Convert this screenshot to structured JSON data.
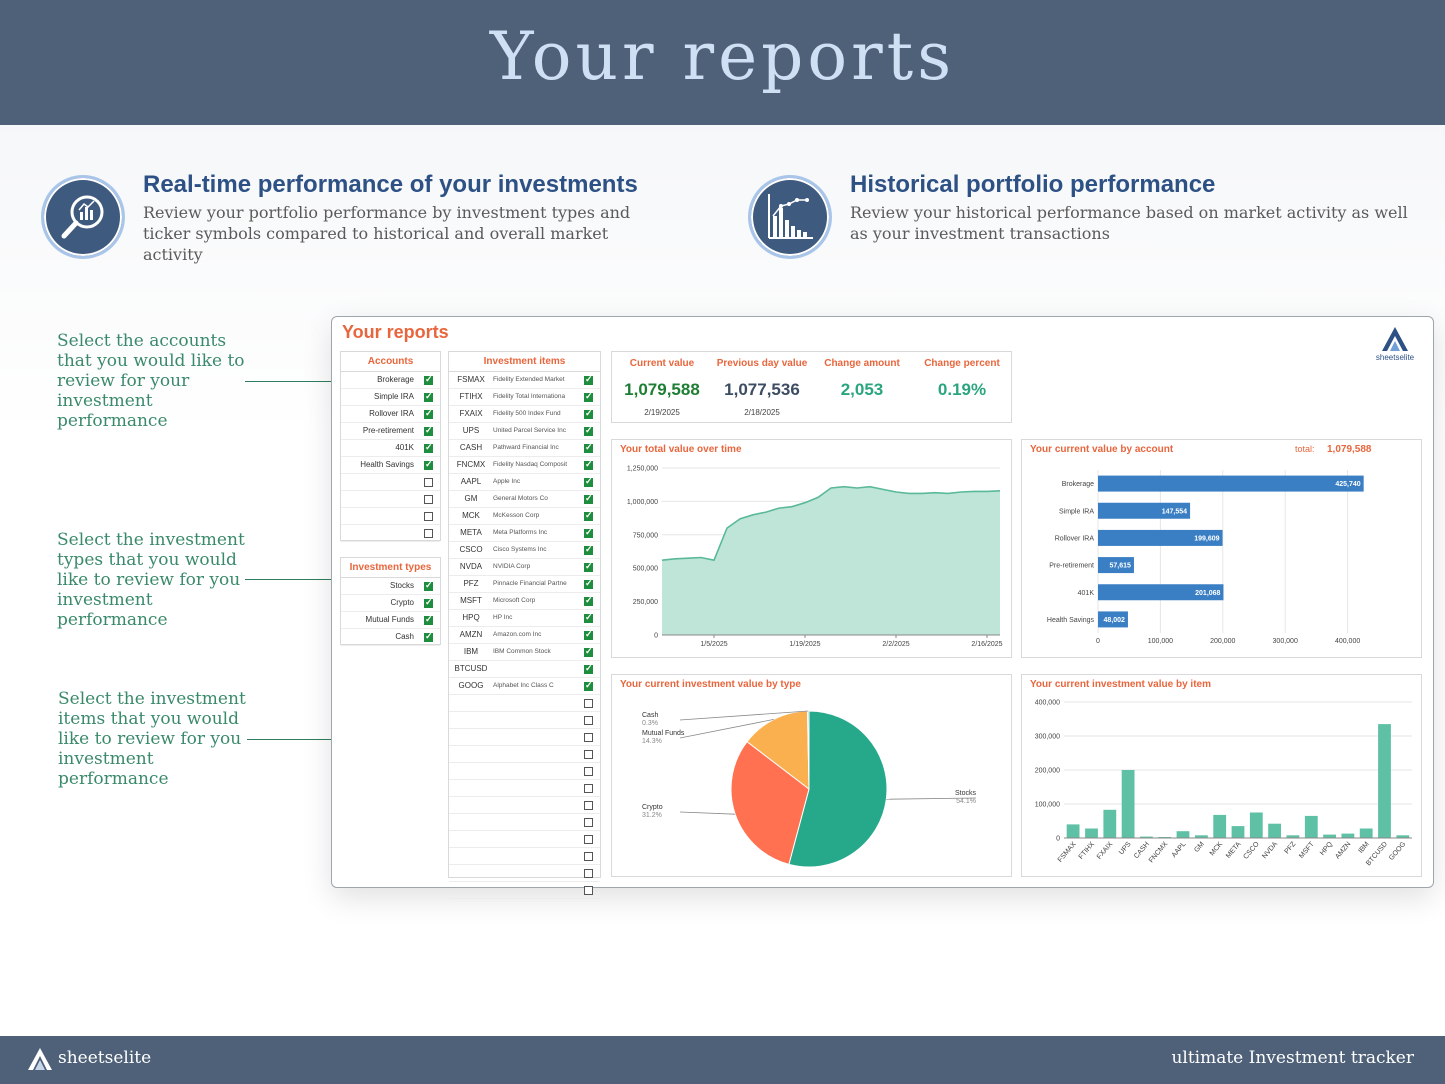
{
  "banner": {
    "title": "Your reports"
  },
  "features": [
    {
      "title": "Real-time performance of your investments",
      "description": "Review your portfolio performance by investment types and ticker symbols compared to historical and overall market activity",
      "icon": "magnifier-chart-icon"
    },
    {
      "title": "Historical portfolio performance",
      "description": "Review your historical performance based on market activity as well as your investment transactions",
      "icon": "bar-line-chart-icon"
    }
  ],
  "callouts": [
    "Select the accounts that you would like to review for your investment performance",
    "Select the investment types that you would like to review for you investment performance",
    "Select the investment items that you would like to review for you investment performance"
  ],
  "dashboard": {
    "title": "Your reports",
    "logo_text": "sheetselite",
    "accounts": {
      "header": "Accounts",
      "items": [
        {
          "label": "Brokerage",
          "checked": true
        },
        {
          "label": "Simple IRA",
          "checked": true
        },
        {
          "label": "Rollover IRA",
          "checked": true
        },
        {
          "label": "Pre-retirement",
          "checked": true
        },
        {
          "label": "401K",
          "checked": true
        },
        {
          "label": "Health Savings",
          "checked": true
        },
        {
          "label": "",
          "checked": false
        },
        {
          "label": "",
          "checked": false
        },
        {
          "label": "",
          "checked": false
        },
        {
          "label": "",
          "checked": false
        }
      ]
    },
    "types": {
      "header": "Investment types",
      "items": [
        {
          "label": "Stocks",
          "checked": true
        },
        {
          "label": "Crypto",
          "checked": true
        },
        {
          "label": "Mutual Funds",
          "checked": true
        },
        {
          "label": "Cash",
          "checked": true
        }
      ]
    },
    "items": {
      "header": "Investment items",
      "rows": [
        {
          "ticker": "FSMAX",
          "name": "Fidelity Extended Market",
          "checked": true
        },
        {
          "ticker": "FTIHX",
          "name": "Fidelity Total Internationa",
          "checked": true
        },
        {
          "ticker": "FXAIX",
          "name": "Fidelity 500 Index Fund",
          "checked": true
        },
        {
          "ticker": "UPS",
          "name": "United Parcel Service Inc",
          "checked": true
        },
        {
          "ticker": "CASH",
          "name": "Pathward Financial Inc",
          "checked": true
        },
        {
          "ticker": "FNCMX",
          "name": "Fidelity Nasdaq Composit",
          "checked": true
        },
        {
          "ticker": "AAPL",
          "name": "Apple Inc",
          "checked": true
        },
        {
          "ticker": "GM",
          "name": "General Motors Co",
          "checked": true
        },
        {
          "ticker": "MCK",
          "name": "McKesson Corp",
          "checked": true
        },
        {
          "ticker": "META",
          "name": "Meta Platforms Inc",
          "checked": true
        },
        {
          "ticker": "CSCO",
          "name": "Cisco Systems Inc",
          "checked": true
        },
        {
          "ticker": "NVDA",
          "name": "NVIDIA Corp",
          "checked": true
        },
        {
          "ticker": "PFZ",
          "name": "Pinnacle Financial Partne",
          "checked": true
        },
        {
          "ticker": "MSFT",
          "name": "Microsoft Corp",
          "checked": true
        },
        {
          "ticker": "HPQ",
          "name": "HP Inc",
          "checked": true
        },
        {
          "ticker": "AMZN",
          "name": "Amazon.com Inc",
          "checked": true
        },
        {
          "ticker": "IBM",
          "name": "IBM Common Stock",
          "checked": true
        },
        {
          "ticker": "BTCUSD",
          "name": "",
          "checked": true
        },
        {
          "ticker": "GOOG",
          "name": "Alphabet Inc Class C",
          "checked": true
        },
        {
          "ticker": "",
          "name": "",
          "checked": false
        },
        {
          "ticker": "",
          "name": "",
          "checked": false
        },
        {
          "ticker": "",
          "name": "",
          "checked": false
        },
        {
          "ticker": "",
          "name": "",
          "checked": false
        },
        {
          "ticker": "",
          "name": "",
          "checked": false
        },
        {
          "ticker": "",
          "name": "",
          "checked": false
        },
        {
          "ticker": "",
          "name": "",
          "checked": false
        },
        {
          "ticker": "",
          "name": "",
          "checked": false
        },
        {
          "ticker": "",
          "name": "",
          "checked": false
        },
        {
          "ticker": "",
          "name": "",
          "checked": false
        },
        {
          "ticker": "",
          "name": "",
          "checked": false
        },
        {
          "ticker": "",
          "name": "",
          "checked": false
        }
      ]
    },
    "kpis": [
      {
        "label": "Current value",
        "value": "1,079,588",
        "date": "2/19/2025",
        "color": "#1e7e34"
      },
      {
        "label": "Previous day value",
        "value": "1,077,536",
        "date": "2/18/2025",
        "color": "#3c4c63"
      },
      {
        "label": "Change amount",
        "value": "2,053",
        "date": "",
        "color": "#2aa57f"
      },
      {
        "label": "Change percent",
        "value": "0.19%",
        "date": "",
        "color": "#2aa57f"
      }
    ],
    "account_total": {
      "label": "total:",
      "value": "1,079,588"
    }
  },
  "chart_data": [
    {
      "type": "area",
      "title": "Your total value over time",
      "x": [
        "12/27/2024",
        "12/30/2024",
        "1/2/2025",
        "1/4/2025",
        "1/5/2025",
        "1/7/2025",
        "1/9/2025",
        "1/11/2025",
        "1/13/2025",
        "1/15/2025",
        "1/17/2025",
        "1/19/2025",
        "1/21/2025",
        "1/23/2025",
        "1/25/2025",
        "1/27/2025",
        "1/29/2025",
        "1/31/2025",
        "2/2/2025",
        "2/4/2025",
        "2/6/2025",
        "2/8/2025",
        "2/10/2025",
        "2/12/2025",
        "2/14/2025",
        "2/16/2025",
        "2/19/2025"
      ],
      "y": [
        560000,
        570000,
        575000,
        580000,
        560000,
        800000,
        870000,
        900000,
        920000,
        950000,
        960000,
        990000,
        1030000,
        1100000,
        1110000,
        1100000,
        1110000,
        1090000,
        1070000,
        1060000,
        1060000,
        1065000,
        1060000,
        1070000,
        1075000,
        1075000,
        1079588
      ],
      "xticks": [
        "1/5/2025",
        "1/19/2025",
        "2/2/2025",
        "2/16/2025"
      ],
      "yticks": [
        "0",
        "250,000",
        "500,000",
        "750,000",
        "1,000,000",
        "1,250,000"
      ],
      "ylim": [
        0,
        1250000
      ],
      "color": "#5ab99a"
    },
    {
      "type": "bar",
      "orientation": "horizontal",
      "title": "Your current value by account",
      "categories": [
        "Brokerage",
        "Simple IRA",
        "Rollover IRA",
        "Pre-retirement",
        "401K",
        "Health Savings"
      ],
      "values": [
        425740,
        147554,
        199609,
        57615,
        201068,
        48002
      ],
      "labels": [
        "425,740",
        "147,554",
        "199,609",
        "57,615",
        "201,068",
        "48,002"
      ],
      "xticks": [
        "0",
        "100,000",
        "200,000",
        "300,000",
        "400,000"
      ],
      "xlim": [
        0,
        500000
      ],
      "color": "#3a7fc4"
    },
    {
      "type": "pie",
      "title": "Your current investment value by type",
      "categories": [
        "Stocks",
        "Mutual Funds",
        "Crypto",
        "Cash"
      ],
      "values": [
        54.1,
        14.3,
        31.2,
        0.3
      ],
      "labels": [
        "54.1%",
        "14.3%",
        "31.2%",
        "0.3%"
      ],
      "colors": [
        "#26a98a",
        "#fbb04f",
        "#ff7150",
        "#8ec7e6"
      ]
    },
    {
      "type": "bar",
      "title": "Your current investment value by item",
      "categories": [
        "FSMAX",
        "FTIHX",
        "FXAIX",
        "UPS",
        "CASH",
        "FNCMX",
        "AAPL",
        "GM",
        "MCK",
        "META",
        "CSCO",
        "NVDA",
        "PFZ",
        "MSFT",
        "HPQ",
        "AMZN",
        "IBM",
        "BTCUSD",
        "GOOG"
      ],
      "values": [
        40000,
        28000,
        83000,
        200000,
        4000,
        3000,
        20000,
        8000,
        68000,
        35000,
        75000,
        42000,
        8000,
        65000,
        10000,
        13000,
        28000,
        335000,
        8000
      ],
      "yticks": [
        "0",
        "100,000",
        "200,000",
        "300,000",
        "400,000"
      ],
      "ylim": [
        0,
        400000
      ],
      "color": "#5ec0a4"
    }
  ],
  "footer": {
    "brand": "sheetselite",
    "right": "ultimate Investment tracker"
  }
}
